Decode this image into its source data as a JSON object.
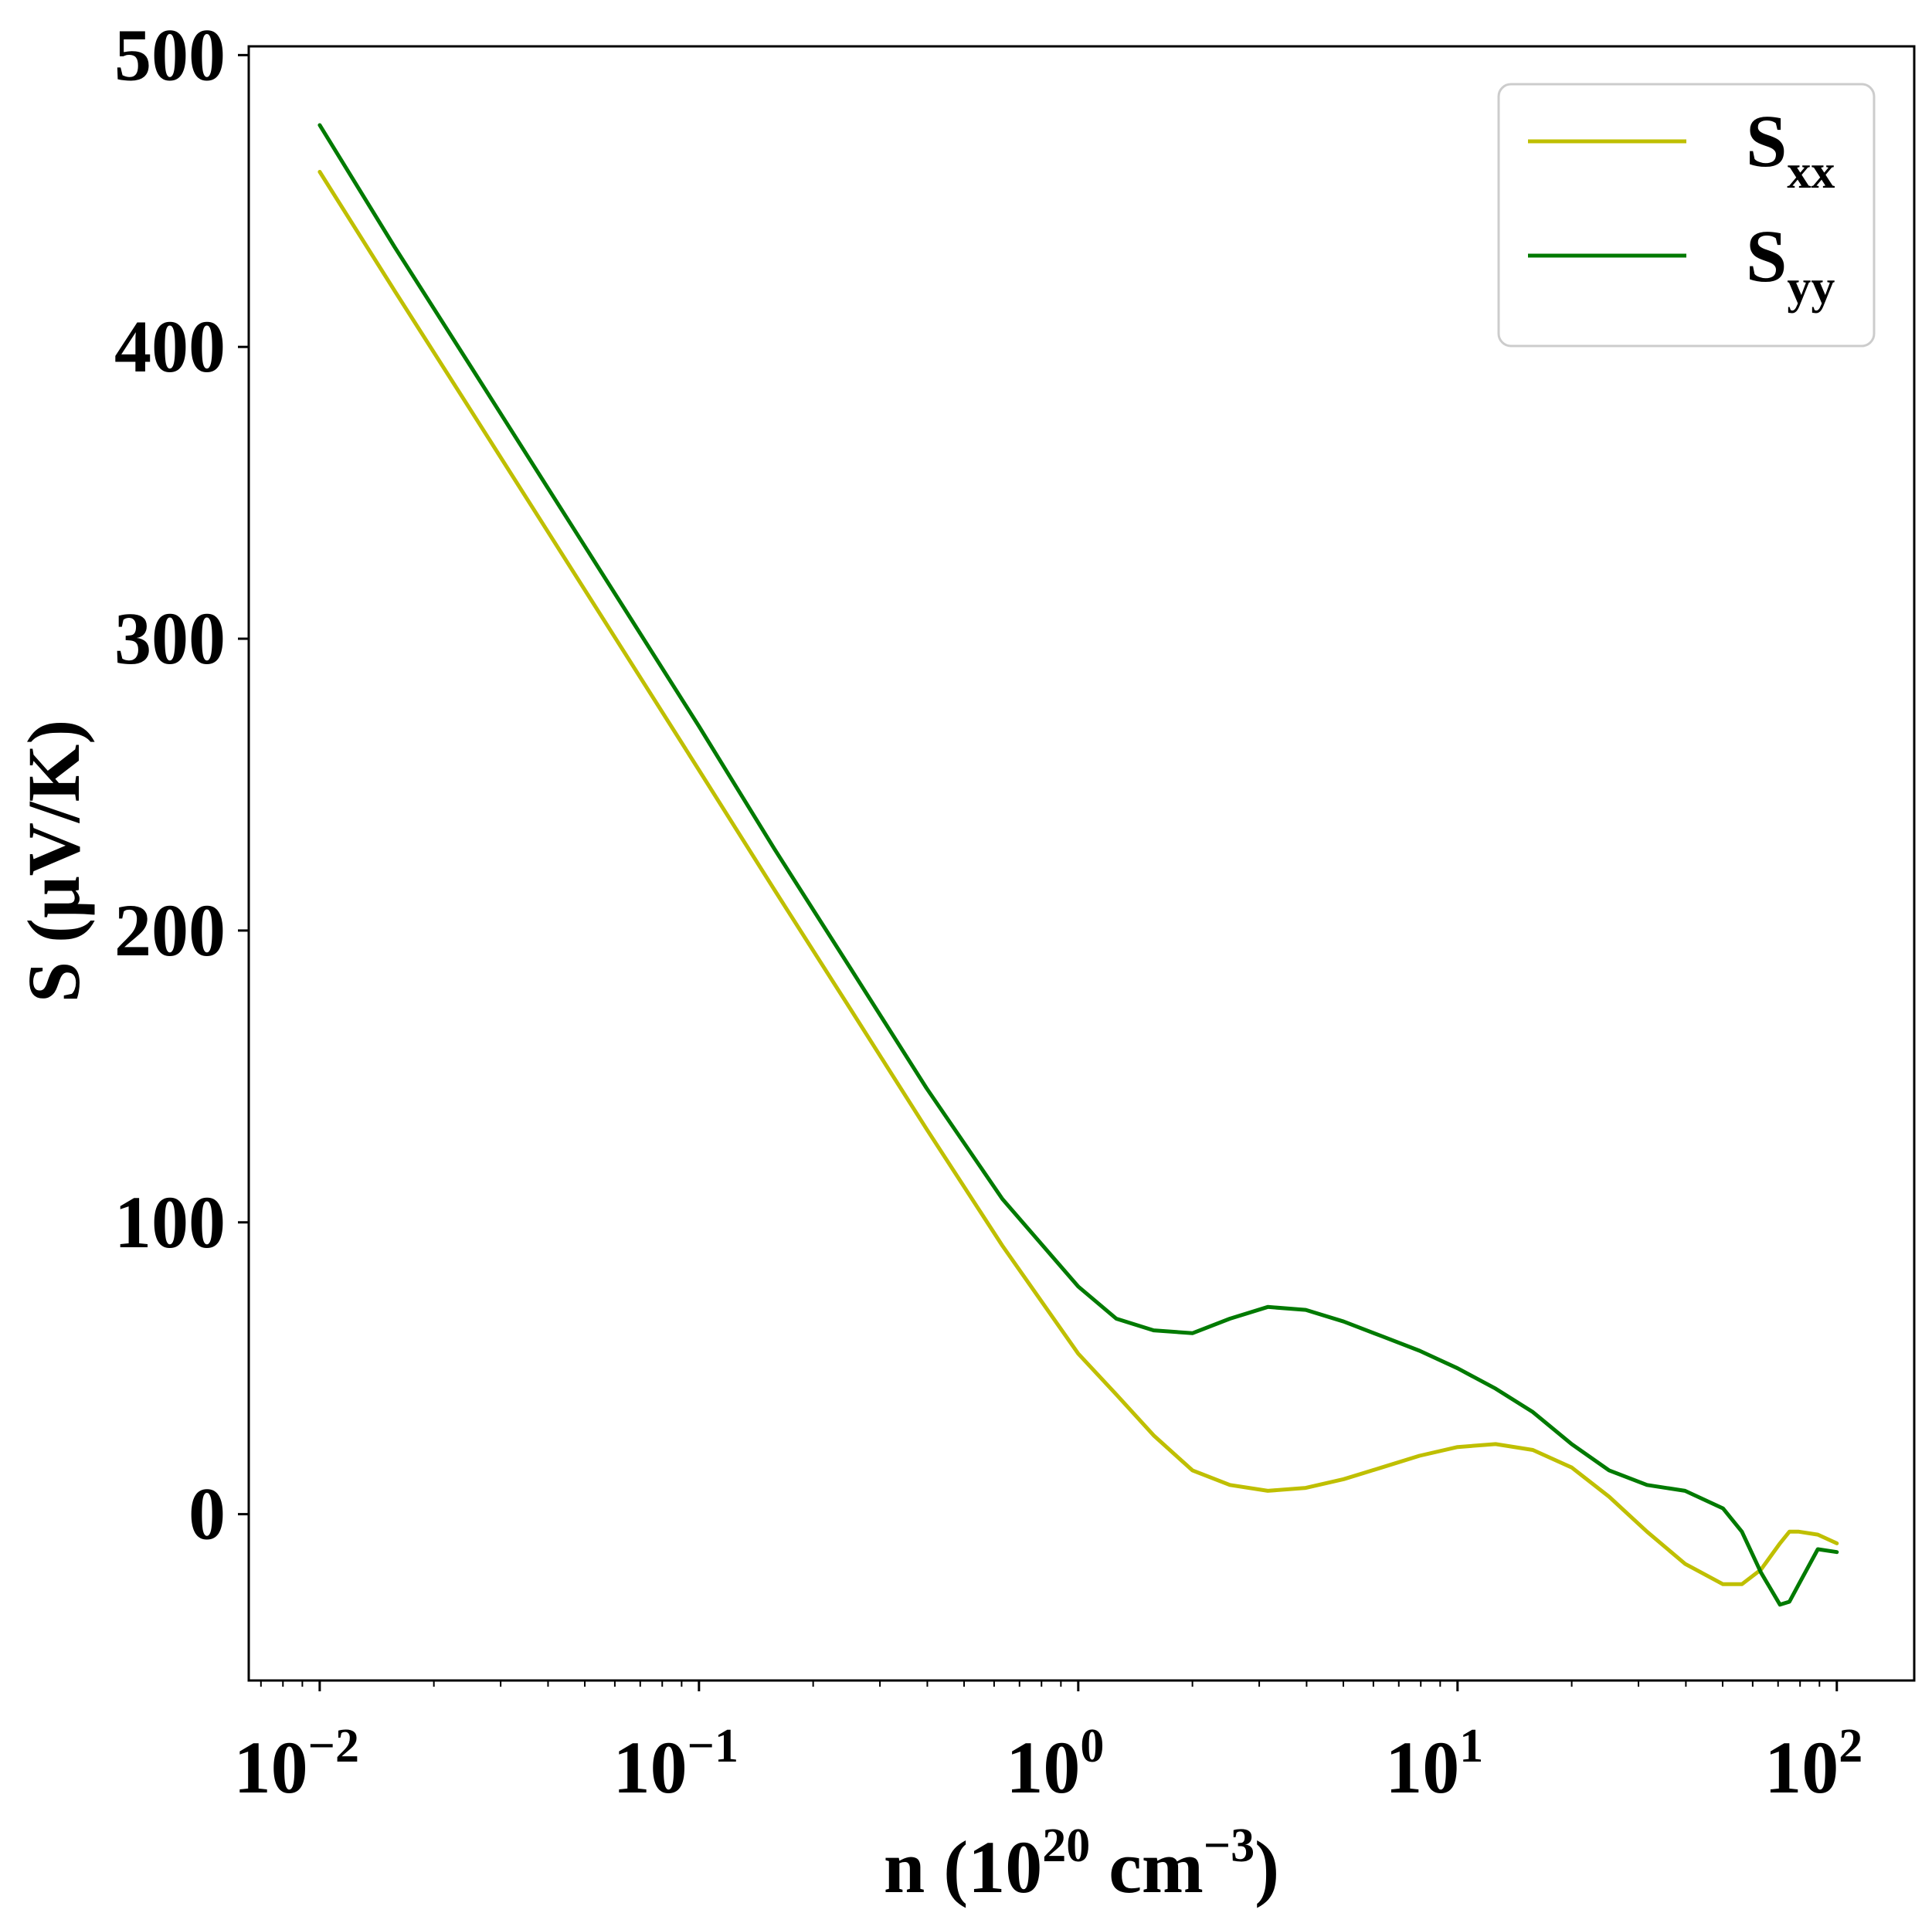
{
  "chart_data": {
    "type": "line",
    "title": "",
    "xscale": "log",
    "xlabel": {
      "prefix": "n (10",
      "sup1": "20",
      "mid": " cm",
      "sup2": "−3",
      "suffix": ")"
    },
    "ylabel": "S (μV/K)",
    "xlim": [
      0.0065,
      160
    ],
    "ylim": [
      -57,
      503
    ],
    "x_ticks": [
      {
        "value": 0.01,
        "base": "10",
        "exp": "−2"
      },
      {
        "value": 0.1,
        "base": "10",
        "exp": "−1"
      },
      {
        "value": 1,
        "base": "10",
        "exp": "0"
      },
      {
        "value": 10,
        "base": "10",
        "exp": "1"
      },
      {
        "value": 100,
        "base": "10",
        "exp": "2"
      }
    ],
    "y_ticks": [
      {
        "value": 0,
        "label": "0"
      },
      {
        "value": 100,
        "label": "100"
      },
      {
        "value": 200,
        "label": "200"
      },
      {
        "value": 300,
        "label": "300"
      },
      {
        "value": 400,
        "label": "400"
      },
      {
        "value": 500,
        "label": "500"
      }
    ],
    "legend": {
      "position": "top-right"
    },
    "series": [
      {
        "name": "Sxx",
        "label_main": "S",
        "label_sub": "xx",
        "color": "#bfbf00",
        "x": [
          0.01,
          0.0158,
          0.0251,
          0.0398,
          0.0631,
          0.1,
          0.158,
          0.251,
          0.398,
          0.631,
          1.0,
          1.26,
          1.58,
          2.0,
          2.51,
          3.16,
          3.98,
          5.01,
          6.31,
          7.94,
          10.0,
          12.6,
          15.8,
          20.0,
          25.1,
          31.6,
          39.8,
          50.1,
          56.2,
          63.1,
          70.8,
          75.0,
          79.4,
          89.1,
          100.0
        ],
        "y": [
          460,
          419,
          378,
          337,
          296,
          255,
          214,
          173,
          132,
          92,
          55,
          41,
          27,
          15,
          10,
          8,
          9,
          12,
          16,
          20,
          23,
          24,
          22,
          16,
          6,
          -6,
          -17,
          -24,
          -24,
          -19,
          -10,
          -6,
          -6,
          -7,
          -10
        ]
      },
      {
        "name": "Syy",
        "label_main": "S",
        "label_sub": "yy",
        "color": "#007a00",
        "x": [
          0.01,
          0.0158,
          0.0251,
          0.0398,
          0.0631,
          0.1,
          0.158,
          0.251,
          0.398,
          0.631,
          1.0,
          1.26,
          1.58,
          2.0,
          2.51,
          3.16,
          3.98,
          5.01,
          6.31,
          7.94,
          10.0,
          12.6,
          15.8,
          20.0,
          25.1,
          31.6,
          39.8,
          50.1,
          56.2,
          63.1,
          70.8,
          75.0,
          79.4,
          89.1,
          100.0
        ],
        "y": [
          476,
          434,
          393,
          352,
          311,
          270,
          228,
          187,
          146,
          108,
          78,
          67,
          63,
          62,
          67,
          71,
          70,
          66,
          61,
          56,
          50,
          43,
          35,
          24,
          15,
          10,
          8,
          2,
          -6,
          -20,
          -31,
          -30,
          -24,
          -12,
          -13
        ]
      }
    ]
  }
}
